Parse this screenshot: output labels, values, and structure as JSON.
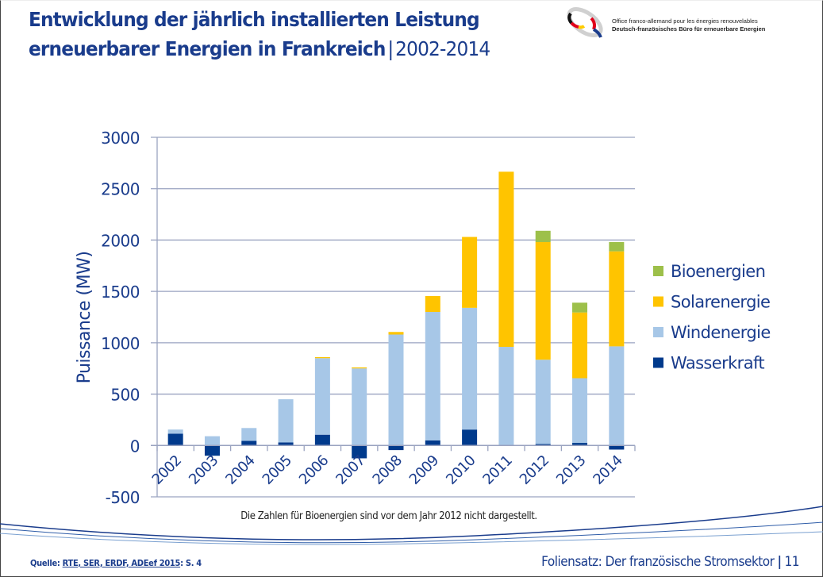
{
  "header": {
    "title_line1": "Entwicklung der jährlich installierten Leistung",
    "title_line2": "erneuerbarer Energien in Frankreich",
    "separator": "|",
    "title_years": "2002-2014"
  },
  "logo": {
    "line_fr": "Office franco-allemand pour les énergies renouvelables",
    "line_de": "Deutsch-französisches Büro für erneuerbare Energien"
  },
  "note": "Die Zahlen für Bioenergien sind vor dem Jahr 2012 nicht dargestellt.",
  "source": {
    "label": "Quelle: ",
    "link_text": "RTE, SER, ERDF, ADEef 2015",
    "suffix": ": S. 4"
  },
  "footer": {
    "text": "Foliensatz: Der französische Stromsektor",
    "separator": "|",
    "page": "11"
  },
  "chart_data": {
    "type": "bar",
    "stacked": true,
    "title": "Entwicklung der jährlich installierten Leistung erneuerbarer Energien in Frankreich | 2002-2014",
    "xlabel": "",
    "ylabel": "Puissance (MW)",
    "ylim": [
      -500,
      3000
    ],
    "yticks": [
      -500,
      0,
      500,
      1000,
      1500,
      2000,
      2500,
      3000
    ],
    "ytick_labels": [
      "-500",
      "0",
      "500",
      "1000",
      "1500",
      "2000",
      "2500",
      "3000"
    ],
    "grid": true,
    "legend_position": "right",
    "categories": [
      "2002",
      "2003",
      "2004",
      "2005",
      "2006",
      "2007",
      "2008",
      "2009",
      "2010",
      "2011",
      "2012",
      "2013",
      "2014"
    ],
    "series": [
      {
        "name": "Wasserkraft",
        "color": "#003a8c",
        "values": [
          115,
          -100,
          45,
          30,
          105,
          -125,
          -45,
          50,
          155,
          0,
          15,
          25,
          -40
        ]
      },
      {
        "name": "Windenergie",
        "color": "#a7c7e7",
        "values": [
          40,
          90,
          125,
          420,
          745,
          750,
          1080,
          1250,
          1185,
          960,
          820,
          630,
          965
        ]
      },
      {
        "name": "Solarenergie",
        "color": "#ffc400",
        "values": [
          0,
          0,
          0,
          0,
          10,
          10,
          25,
          155,
          690,
          1705,
          1145,
          640,
          925
        ]
      },
      {
        "name": "Bioenergien",
        "color": "#9dc04a",
        "values": [
          0,
          0,
          0,
          0,
          0,
          0,
          0,
          0,
          0,
          0,
          110,
          95,
          90
        ]
      }
    ],
    "legend": [
      "Bioenergien",
      "Solarenergie",
      "Windenergie",
      "Wasserkraft"
    ]
  }
}
